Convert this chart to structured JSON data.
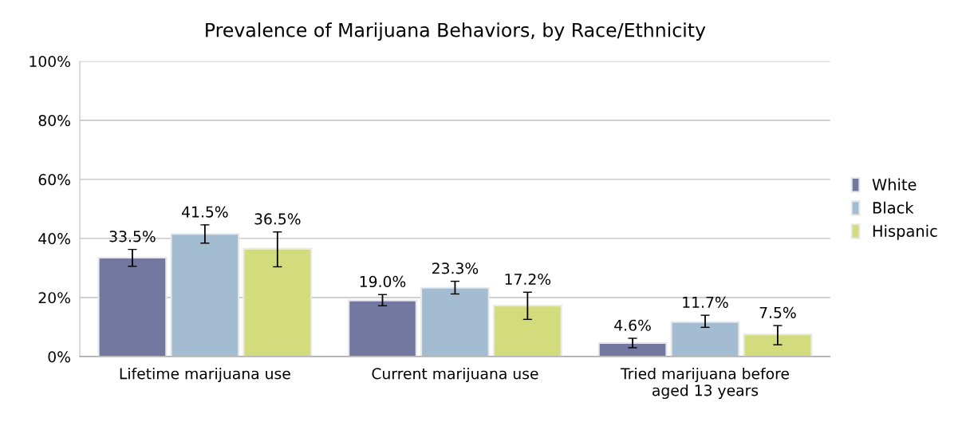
{
  "chart_data": {
    "type": "bar",
    "title": "Prevalence of Marijuana Behaviors, by Race/Ethnicity",
    "categories": [
      "Lifetime marijuana use",
      "Current marijuana use",
      "Tried marijuana before\naged 13 years"
    ],
    "series": [
      {
        "name": "White",
        "color": "#7478a0",
        "values": [
          33.5,
          19.0,
          4.6
        ],
        "value_labels": [
          "33.5%",
          "19.0%",
          "4.6%"
        ],
        "errors": [
          [
            30.6,
            36.3
          ],
          [
            17.2,
            21.0
          ],
          [
            3.0,
            6.2
          ]
        ]
      },
      {
        "name": "Black",
        "color": "#a3bcd1",
        "values": [
          41.5,
          23.3,
          11.7
        ],
        "value_labels": [
          "41.5%",
          "23.3%",
          "11.7%"
        ],
        "errors": [
          [
            38.4,
            44.6
          ],
          [
            21.2,
            25.5
          ],
          [
            9.9,
            14.0
          ]
        ]
      },
      {
        "name": "Hispanic",
        "color": "#d3dc7c",
        "values": [
          36.5,
          17.2,
          7.5
        ],
        "value_labels": [
          "36.5%",
          "17.2%",
          "7.5%"
        ],
        "errors": [
          [
            30.4,
            42.2
          ],
          [
            12.6,
            21.8
          ],
          [
            4.0,
            10.5
          ]
        ]
      }
    ],
    "ylim": [
      0,
      100
    ],
    "yticks": [
      {
        "value": 0,
        "label": "0%"
      },
      {
        "value": 20,
        "label": "20%"
      },
      {
        "value": 40,
        "label": "40%"
      },
      {
        "value": 60,
        "label": "60%"
      },
      {
        "value": 80,
        "label": "80%"
      },
      {
        "value": 100,
        "label": "100%"
      }
    ],
    "grid": "y",
    "legend": "right"
  }
}
